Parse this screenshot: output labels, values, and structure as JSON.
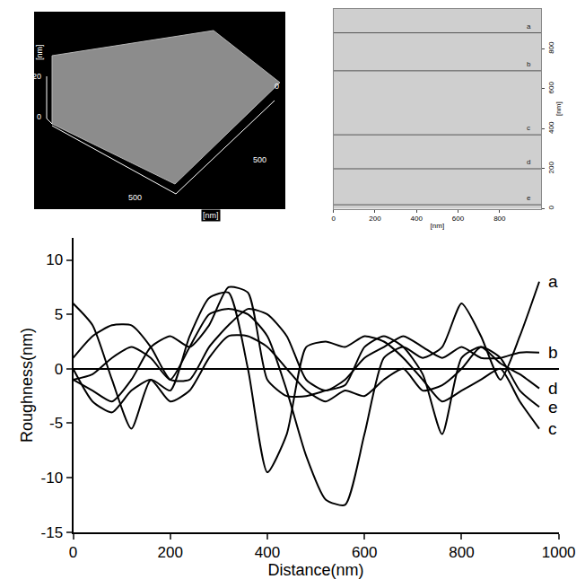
{
  "chart_data": [
    {
      "type": "line",
      "x_label": "Distance(nm)",
      "y_label": "Roughness(nm)",
      "x": [
        0,
        40,
        80,
        120,
        160,
        200,
        240,
        280,
        320,
        360,
        400,
        440,
        480,
        520,
        560,
        600,
        640,
        680,
        720,
        760,
        800,
        840,
        880,
        920,
        960
      ],
      "series": [
        {
          "name": "a",
          "color": "#000000",
          "values": [
            -1,
            -0.5,
            1,
            2,
            1,
            -1,
            2,
            5,
            5.5,
            5,
            3,
            -2,
            -8,
            -12,
            -12.5,
            -6,
            1,
            2,
            1,
            2,
            6,
            3,
            -1,
            3,
            8
          ]
        },
        {
          "name": "b",
          "color": "#000000",
          "values": [
            1,
            3,
            4,
            4,
            2,
            -1,
            -1,
            2,
            4,
            5.5,
            5,
            3,
            -1,
            -2,
            -1,
            1,
            2,
            3,
            2,
            1,
            2,
            1,
            1,
            1.5,
            1.5
          ]
        },
        {
          "name": "c",
          "color": "#000000",
          "values": [
            6,
            4,
            -1,
            -5.5,
            -1,
            -2,
            3,
            6.5,
            7,
            0,
            -9.5,
            -6,
            2,
            2.5,
            2,
            3,
            2.5,
            1,
            -1,
            -3,
            -2,
            -1,
            0,
            -3,
            -5.5
          ]
        },
        {
          "name": "d",
          "color": "#000000",
          "values": [
            -1,
            -2,
            -3,
            -1,
            2,
            3,
            2,
            4,
            7.5,
            7,
            -1,
            -2.5,
            -2.5,
            -2,
            -1.5,
            2,
            3,
            2,
            -0.5,
            -6,
            1,
            2,
            0.5,
            -0.5,
            -1.8
          ]
        },
        {
          "name": "e",
          "color": "#000000",
          "values": [
            0,
            -3,
            -4,
            -2,
            -1,
            -3,
            -2,
            1,
            3,
            3,
            2,
            0,
            -2,
            -3,
            -2,
            -2.5,
            -1,
            0,
            -2,
            -1.5,
            0,
            2,
            1,
            -2,
            -3.5
          ]
        }
      ],
      "xlim": [
        0,
        1000
      ],
      "xticks": [
        0,
        200,
        400,
        600,
        800,
        1000
      ],
      "ylim": [
        -15,
        12
      ],
      "yticks": [
        -15,
        -10,
        -5,
        0,
        5,
        10
      ],
      "grid": false
    },
    {
      "type": "afm_map",
      "x_label": "[nm]",
      "y_label": "[nm]",
      "xlim": [
        0,
        1000
      ],
      "xticks": [
        0,
        200,
        400,
        600,
        800
      ],
      "ylim": [
        0,
        1000
      ],
      "yticks": [
        0,
        200,
        400,
        600,
        800
      ],
      "scan_lines": [
        {
          "name": "a",
          "y": 880
        },
        {
          "name": "b",
          "y": 690
        },
        {
          "name": "c",
          "y": 370
        },
        {
          "name": "d",
          "y": 200
        },
        {
          "name": "e",
          "y": 20
        }
      ]
    },
    {
      "type": "afm_3d",
      "z_label": "[nm]",
      "z_ticks": [
        0,
        20
      ],
      "x_label": "[nm]",
      "x_ticks": [
        500
      ],
      "y_ticks": [
        0,
        500
      ]
    }
  ]
}
